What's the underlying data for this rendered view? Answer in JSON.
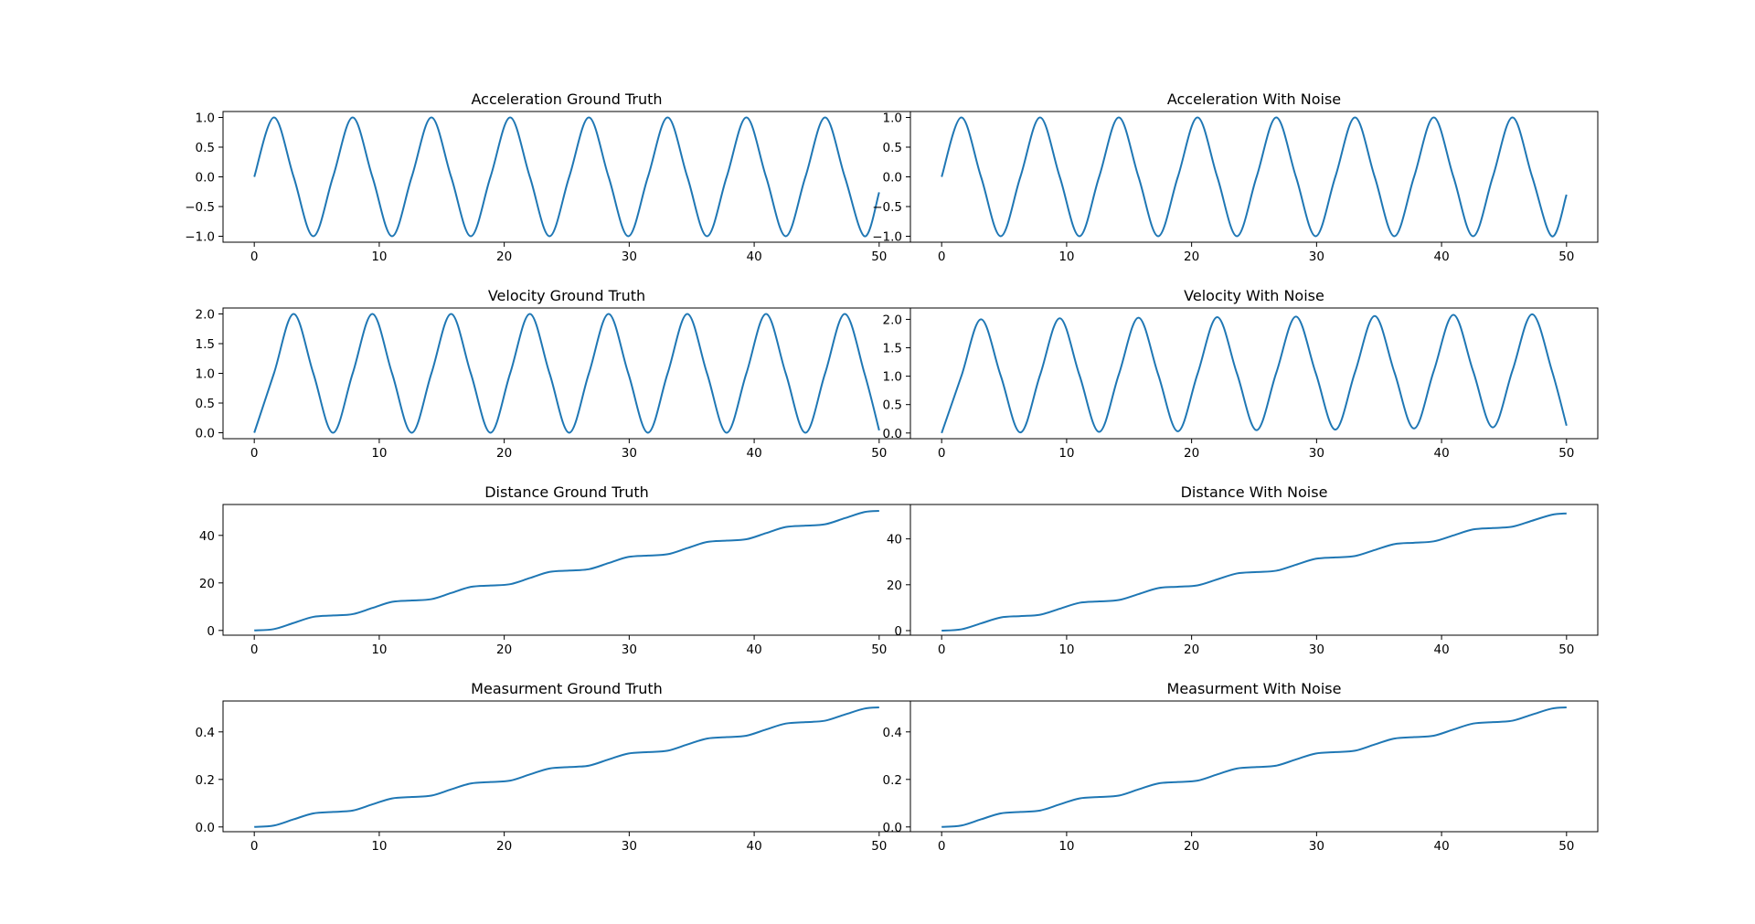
{
  "style": {
    "line_color": "#1f77b4"
  },
  "chart_data": [
    {
      "id": "acc-gt",
      "type": "line",
      "title": "Acceleration Ground Truth",
      "xlim": [
        -2.5,
        52.5
      ],
      "ylim": [
        -1.1,
        1.1
      ],
      "xticks": [
        0,
        10,
        20,
        30,
        40,
        50
      ],
      "xtick_labels": [
        "0",
        "10",
        "20",
        "30",
        "40",
        "50"
      ],
      "yticks": [
        -1.0,
        -0.5,
        0.0,
        0.5,
        1.0
      ],
      "ytick_labels": [
        "−1.0",
        "−0.5",
        "0.0",
        "0.5",
        "1.0"
      ],
      "grid": false,
      "x": [
        0,
        1.575,
        3.15,
        4.725,
        6.3,
        7.875,
        9.45,
        11.025,
        12.6,
        14.175,
        15.75,
        17.325,
        18.9,
        20.475,
        22.05,
        23.625,
        25.2,
        26.775,
        28.35,
        29.925,
        31.5,
        33.075,
        34.65,
        36.225,
        37.8,
        39.375,
        40.95,
        42.525,
        44.1,
        45.675,
        47.25,
        48.825,
        50
      ],
      "y": [
        0.0,
        1.0,
        0.0,
        -1.0,
        0.0,
        1.0,
        0.0,
        -1.0,
        0.0,
        1.0,
        0.0,
        -1.0,
        0.0,
        1.0,
        0.0,
        -1.0,
        0.0,
        1.0,
        0.0,
        -1.0,
        0.0,
        1.0,
        0.0,
        -1.0,
        0.0,
        1.0,
        0.0,
        -1.0,
        0.0,
        1.0,
        0.0,
        -1.0,
        -0.26
      ]
    },
    {
      "id": "acc-noise",
      "type": "line",
      "title": "Acceleration With Noise",
      "xlim": [
        -2.5,
        52.5
      ],
      "ylim": [
        -1.1,
        1.1
      ],
      "xticks": [
        0,
        10,
        20,
        30,
        40,
        50
      ],
      "xtick_labels": [
        "0",
        "10",
        "20",
        "30",
        "40",
        "50"
      ],
      "yticks": [
        -1.0,
        -0.5,
        0.0,
        0.5,
        1.0
      ],
      "ytick_labels": [
        "−1.0",
        "−0.5",
        "0.0",
        "0.5",
        "1.0"
      ],
      "grid": false,
      "x": [
        0,
        1.575,
        3.15,
        4.725,
        6.3,
        7.875,
        9.45,
        11.025,
        12.6,
        14.175,
        15.75,
        17.325,
        18.9,
        20.475,
        22.05,
        23.625,
        25.2,
        26.775,
        28.35,
        29.925,
        31.5,
        33.075,
        34.65,
        36.225,
        37.8,
        39.375,
        40.95,
        42.525,
        44.1,
        45.675,
        47.25,
        48.825,
        50
      ],
      "y": [
        0.0,
        1.0,
        0.0,
        -1.0,
        0.0,
        1.0,
        0.0,
        -1.0,
        0.0,
        1.0,
        0.0,
        -1.0,
        0.0,
        1.0,
        0.0,
        -1.0,
        0.0,
        1.0,
        0.0,
        -1.0,
        0.0,
        1.0,
        0.0,
        -1.0,
        0.0,
        1.0,
        0.0,
        -1.0,
        0.0,
        1.0,
        0.0,
        -1.0,
        -0.3
      ]
    },
    {
      "id": "vel-gt",
      "type": "line",
      "title": "Velocity Ground Truth",
      "xlim": [
        -2.5,
        52.5
      ],
      "ylim": [
        -0.1,
        2.1
      ],
      "xticks": [
        0,
        10,
        20,
        30,
        40,
        50
      ],
      "xtick_labels": [
        "0",
        "10",
        "20",
        "30",
        "40",
        "50"
      ],
      "yticks": [
        0.0,
        0.5,
        1.0,
        1.5,
        2.0
      ],
      "ytick_labels": [
        "0.0",
        "0.5",
        "1.0",
        "1.5",
        "2.0"
      ],
      "grid": false,
      "x": [
        0,
        1.575,
        3.15,
        4.725,
        6.3,
        7.875,
        9.45,
        11.025,
        12.6,
        14.175,
        15.75,
        17.325,
        18.9,
        20.475,
        22.05,
        23.625,
        25.2,
        26.775,
        28.35,
        29.925,
        31.5,
        33.075,
        34.65,
        36.225,
        37.8,
        39.375,
        40.95,
        42.525,
        44.1,
        45.675,
        47.25,
        48.825,
        50
      ],
      "y": [
        0.0,
        1.0,
        2.0,
        1.0,
        0.0,
        1.0,
        2.0,
        1.0,
        0.0,
        1.0,
        2.0,
        1.0,
        0.0,
        1.0,
        2.0,
        1.0,
        0.0,
        1.0,
        2.0,
        1.0,
        0.0,
        1.0,
        2.0,
        1.0,
        0.0,
        1.0,
        2.0,
        1.0,
        0.0,
        1.0,
        2.0,
        1.0,
        0.04
      ]
    },
    {
      "id": "vel-noise",
      "type": "line",
      "title": "Velocity With Noise",
      "xlim": [
        -2.5,
        52.5
      ],
      "ylim": [
        -0.1,
        2.2
      ],
      "xticks": [
        0,
        10,
        20,
        30,
        40,
        50
      ],
      "xtick_labels": [
        "0",
        "10",
        "20",
        "30",
        "40",
        "50"
      ],
      "yticks": [
        0.0,
        0.5,
        1.0,
        1.5,
        2.0
      ],
      "ytick_labels": [
        "0.0",
        "0.5",
        "1.0",
        "1.5",
        "2.0"
      ],
      "grid": false,
      "x": [
        0,
        1.575,
        3.15,
        4.725,
        6.3,
        7.875,
        9.45,
        11.025,
        12.6,
        14.175,
        15.75,
        17.325,
        18.9,
        20.475,
        22.05,
        23.625,
        25.2,
        26.775,
        28.35,
        29.925,
        31.5,
        33.075,
        34.65,
        36.225,
        37.8,
        39.375,
        40.95,
        42.525,
        44.1,
        45.675,
        47.25,
        48.825,
        50
      ],
      "y": [
        0.0,
        1.0,
        2.0,
        1.01,
        0.01,
        1.02,
        2.02,
        1.02,
        0.02,
        1.03,
        2.03,
        1.03,
        0.03,
        1.04,
        2.04,
        1.05,
        0.05,
        1.06,
        2.05,
        1.06,
        0.06,
        1.07,
        2.06,
        1.07,
        0.08,
        1.09,
        2.08,
        1.09,
        0.1,
        1.1,
        2.09,
        1.1,
        0.13
      ]
    },
    {
      "id": "dist-gt",
      "type": "line",
      "title": "Distance Ground Truth",
      "xlim": [
        -2.5,
        52.5
      ],
      "ylim": [
        -2.0,
        53.0
      ],
      "xticks": [
        0,
        10,
        20,
        30,
        40,
        50
      ],
      "xtick_labels": [
        "0",
        "10",
        "20",
        "30",
        "40",
        "50"
      ],
      "yticks": [
        0,
        20,
        40
      ],
      "ytick_labels": [
        "0",
        "20",
        "40"
      ],
      "grid": false,
      "x": [
        0,
        1.575,
        3.15,
        4.725,
        6.3,
        7.875,
        9.45,
        11.025,
        12.6,
        14.175,
        15.75,
        17.325,
        18.9,
        20.475,
        22.05,
        23.625,
        25.2,
        26.775,
        28.35,
        29.925,
        31.5,
        33.075,
        34.65,
        36.225,
        37.8,
        39.375,
        40.95,
        42.525,
        44.1,
        45.675,
        47.25,
        48.825,
        50
      ],
      "y": [
        0.0,
        0.57,
        3.15,
        5.72,
        6.3,
        6.87,
        9.45,
        12.03,
        12.6,
        13.17,
        15.75,
        18.33,
        18.9,
        19.47,
        22.05,
        24.63,
        25.2,
        25.77,
        28.35,
        30.93,
        31.5,
        32.07,
        34.65,
        37.23,
        37.8,
        38.37,
        40.95,
        43.53,
        44.1,
        44.67,
        47.25,
        49.83,
        50.3
      ]
    },
    {
      "id": "dist-noise",
      "type": "line",
      "title": "Distance With Noise",
      "xlim": [
        -2.5,
        52.5
      ],
      "ylim": [
        -2.0,
        55.0
      ],
      "xticks": [
        0,
        10,
        20,
        30,
        40,
        50
      ],
      "xtick_labels": [
        "0",
        "10",
        "20",
        "30",
        "40",
        "50"
      ],
      "yticks": [
        0,
        20,
        40
      ],
      "ytick_labels": [
        "0",
        "20",
        "40"
      ],
      "grid": false,
      "x": [
        0,
        1.575,
        3.15,
        4.725,
        6.3,
        7.875,
        9.45,
        11.025,
        12.6,
        14.175,
        15.75,
        17.325,
        18.9,
        20.475,
        22.05,
        23.625,
        25.2,
        26.775,
        28.35,
        29.925,
        31.5,
        33.075,
        34.65,
        36.225,
        37.8,
        39.375,
        40.95,
        42.525,
        44.1,
        45.675,
        47.25,
        48.825,
        50
      ],
      "y": [
        0.0,
        0.57,
        3.15,
        5.73,
        6.33,
        6.93,
        9.53,
        12.13,
        12.73,
        13.33,
        15.93,
        18.53,
        19.13,
        19.73,
        22.33,
        24.93,
        25.53,
        26.13,
        28.73,
        31.33,
        31.93,
        32.53,
        35.13,
        37.73,
        38.33,
        38.93,
        41.53,
        44.13,
        44.73,
        45.33,
        47.93,
        50.53,
        51.1
      ]
    },
    {
      "id": "meas-gt",
      "type": "line",
      "title": "Measurment Ground Truth",
      "xlim": [
        -2.5,
        52.5
      ],
      "ylim": [
        -0.02,
        0.53
      ],
      "xticks": [
        0,
        10,
        20,
        30,
        40,
        50
      ],
      "xtick_labels": [
        "0",
        "10",
        "20",
        "30",
        "40",
        "50"
      ],
      "yticks": [
        0.0,
        0.2,
        0.4
      ],
      "ytick_labels": [
        "0.0",
        "0.2",
        "0.4"
      ],
      "grid": false,
      "x": [
        0,
        1.575,
        3.15,
        4.725,
        6.3,
        7.875,
        9.45,
        11.025,
        12.6,
        14.175,
        15.75,
        17.325,
        18.9,
        20.475,
        22.05,
        23.625,
        25.2,
        26.775,
        28.35,
        29.925,
        31.5,
        33.075,
        34.65,
        36.225,
        37.8,
        39.375,
        40.95,
        42.525,
        44.1,
        45.675,
        47.25,
        48.825,
        50
      ],
      "y": [
        0.0,
        0.006,
        0.032,
        0.057,
        0.063,
        0.069,
        0.095,
        0.12,
        0.126,
        0.132,
        0.158,
        0.183,
        0.189,
        0.195,
        0.221,
        0.246,
        0.252,
        0.258,
        0.284,
        0.309,
        0.315,
        0.321,
        0.347,
        0.372,
        0.378,
        0.384,
        0.41,
        0.435,
        0.441,
        0.447,
        0.473,
        0.498,
        0.503
      ]
    },
    {
      "id": "meas-noise",
      "type": "line",
      "title": "Measurment With Noise",
      "xlim": [
        -2.5,
        52.5
      ],
      "ylim": [
        -0.02,
        0.53
      ],
      "xticks": [
        0,
        10,
        20,
        30,
        40,
        50
      ],
      "xtick_labels": [
        "0",
        "10",
        "20",
        "30",
        "40",
        "50"
      ],
      "yticks": [
        0.0,
        0.2,
        0.4
      ],
      "ytick_labels": [
        "0.0",
        "0.2",
        "0.4"
      ],
      "grid": false,
      "x": [
        0,
        1.575,
        3.15,
        4.725,
        6.3,
        7.875,
        9.45,
        11.025,
        12.6,
        14.175,
        15.75,
        17.325,
        18.9,
        20.475,
        22.05,
        23.625,
        25.2,
        26.775,
        28.35,
        29.925,
        31.5,
        33.075,
        34.65,
        36.225,
        37.8,
        39.375,
        40.95,
        42.525,
        44.1,
        45.675,
        47.25,
        48.825,
        50
      ],
      "y": [
        0.0,
        0.006,
        0.032,
        0.057,
        0.063,
        0.069,
        0.095,
        0.12,
        0.126,
        0.132,
        0.158,
        0.183,
        0.189,
        0.195,
        0.221,
        0.246,
        0.252,
        0.258,
        0.284,
        0.309,
        0.315,
        0.321,
        0.347,
        0.372,
        0.378,
        0.384,
        0.41,
        0.435,
        0.441,
        0.447,
        0.473,
        0.498,
        0.503
      ]
    }
  ]
}
